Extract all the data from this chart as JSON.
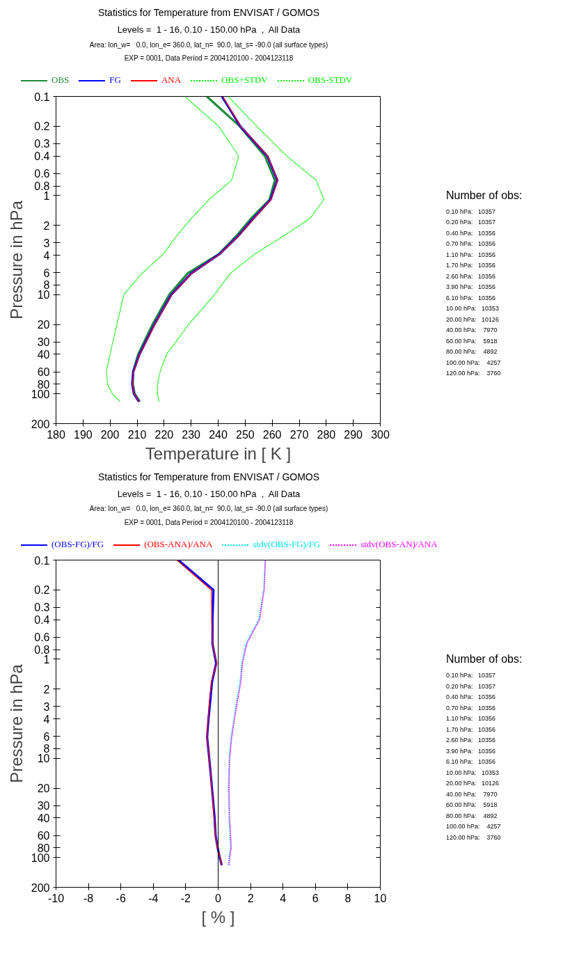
{
  "chart_data": [
    {
      "type": "line",
      "title": "Statistics for Temperature from ENVISAT / GOMOS",
      "subtitle": "Levels =  1 - 16, 0.10 - 150.00 hPa  ,  All Data\nArea: lon_w=   0.0, lon_e= 360.0, lat_n=  90.0, lat_s= -90.0 (all surface types)\nEXP = 0001, Data Period = 2004120100 - 2004123118",
      "xlabel": "Temperature in [ K ]",
      "ylabel": "Pressure in hPa",
      "log": "y",
      "grid": false,
      "legend": "top",
      "xlim": [
        180,
        300
      ],
      "xticks": [
        180,
        190,
        200,
        210,
        220,
        230,
        240,
        250,
        260,
        270,
        280,
        290,
        300
      ],
      "ylim": [
        200,
        0.1
      ],
      "yticks": [
        0.1,
        0.2,
        0.3,
        0.4,
        0.6,
        0.8,
        1,
        2,
        3,
        4,
        6,
        8,
        10,
        20,
        30,
        40,
        60,
        80,
        100,
        200
      ],
      "series": [
        {
          "name": "OBS",
          "color": "#1a8a3a",
          "line_style": "solid",
          "x": [
            235.8,
            248.0,
            257.3,
            261.0,
            259.0,
            252.2,
            246.5,
            240.2,
            228.7,
            221.9,
            215.7,
            210.4,
            208.5,
            208.4,
            209.1,
            211.0
          ],
          "values": [
            0.1,
            0.2,
            0.4,
            0.7,
            1.1,
            1.7,
            2.6,
            3.9,
            6.1,
            10,
            20,
            40,
            60,
            80,
            100,
            120
          ]
        },
        {
          "name": "FG",
          "color": "#0000ff",
          "line_style": "solid",
          "x": [
            241.4,
            248.2,
            258.2,
            261.9,
            259.4,
            253.1,
            247.2,
            240.5,
            230.1,
            222.7,
            216.4,
            210.9,
            208.6,
            208.2,
            208.8,
            210.7
          ],
          "values": [
            0.1,
            0.2,
            0.4,
            0.7,
            1.1,
            1.7,
            2.6,
            3.9,
            6.1,
            10,
            20,
            40,
            60,
            80,
            100,
            120
          ]
        },
        {
          "name": "ANA",
          "color": "#ff0000",
          "line_style": "solid",
          "x": [
            241.7,
            248.3,
            258.3,
            262.0,
            259.5,
            253.2,
            247.3,
            240.6,
            230.2,
            222.8,
            216.5,
            211.0,
            208.7,
            208.3,
            208.9,
            210.8
          ],
          "values": [
            0.1,
            0.2,
            0.4,
            0.7,
            1.1,
            1.7,
            2.6,
            3.9,
            6.1,
            10,
            20,
            40,
            60,
            80,
            100,
            120
          ]
        },
        {
          "name": "OBS+STDV",
          "color": "#00ee00",
          "line_style": "dotted",
          "x": [
            243.7,
            254.3,
            265.4,
            276.3,
            279.1,
            274.0,
            263.8,
            253.5,
            244.5,
            238.6,
            229.1,
            220.9,
            218.5,
            217.6,
            217.5,
            218.1
          ],
          "values": [
            0.1,
            0.2,
            0.4,
            0.7,
            1.1,
            1.7,
            2.6,
            3.9,
            6.1,
            10,
            20,
            40,
            60,
            80,
            100,
            120
          ]
        },
        {
          "name": "OBS-STDV",
          "color": "#00ee00",
          "line_style": "dotted",
          "x": [
            227.6,
            240.2,
            247.6,
            245.0,
            236.6,
            230.1,
            224.4,
            219.7,
            211.8,
            205.1,
            202.5,
            200.0,
            198.6,
            199.1,
            200.8,
            203.7
          ],
          "values": [
            0.1,
            0.2,
            0.4,
            0.7,
            1.1,
            1.7,
            2.6,
            3.9,
            6.1,
            10,
            20,
            40,
            60,
            80,
            100,
            120
          ]
        }
      ],
      "annotations": [
        "Number of obs:",
        "0.10 hPa:   10357",
        "0.20 hPa:   10357",
        "0.40 hPa:   10356",
        "0.70 hPa:   10356",
        "1.10 hPa:   10356",
        "1.70 hPa:   10356",
        "2.60 hPa:   10356",
        "3.90 hPa:   10356",
        "6.10 hPa:   10356",
        "10.00 hPa:   10353",
        "20.00 hPa:   10126",
        "40.00 hPa:    7970",
        "60.00 hPa:    5918",
        "80.00 hPa:    4892",
        "100.00 hPa:    4257",
        "120.00 hPa:    3760"
      ]
    },
    {
      "type": "line",
      "title": "Statistics for Temperature from ENVISAT / GOMOS",
      "subtitle": "Levels =  1 - 16, 0.10 - 150.00 hPa  ,  All Data\nArea: lon_w=   0.0, lon_e= 360.0, lat_n=  90.0, lat_s= -90.0 (all surface types)\nEXP = 0001, Data Period = 2004120100 - 2004123118",
      "xlabel": "[ % ]",
      "ylabel": "Pressure in hPa",
      "log": "y",
      "grid": false,
      "legend": "top",
      "xlim": [
        -10,
        10
      ],
      "xticks": [
        -10,
        -8,
        -6,
        -4,
        -2,
        0,
        2,
        4,
        6,
        8,
        10
      ],
      "ylim": [
        200,
        0.1
      ],
      "yticks": [
        0.1,
        0.2,
        0.3,
        0.4,
        0.6,
        0.8,
        1,
        2,
        3,
        4,
        6,
        8,
        10,
        20,
        30,
        40,
        60,
        80,
        100,
        200
      ],
      "ref_lines": [
        {
          "axis": "x",
          "value": 0,
          "label": null,
          "color": "#000000"
        }
      ],
      "series": [
        {
          "name": "(OBS-FG)/FG",
          "color": "#0000ff",
          "line_style": "solid",
          "x": [
            -2.45,
            -0.29,
            -0.35,
            -0.35,
            -0.12,
            -0.38,
            -0.48,
            -0.59,
            -0.68,
            -0.55,
            -0.38,
            -0.22,
            -0.16,
            -0.03,
            0.1,
            0.22
          ],
          "values": [
            0.1,
            0.2,
            0.4,
            0.7,
            1.1,
            1.7,
            2.6,
            3.9,
            6.1,
            10,
            20,
            40,
            60,
            80,
            100,
            120
          ]
        },
        {
          "name": "(OBS-ANA)/ANA",
          "color": "#ff0000",
          "line_style": "solid",
          "x": [
            -2.55,
            -0.42,
            -0.39,
            -0.35,
            -0.09,
            -0.42,
            -0.54,
            -0.61,
            -0.68,
            -0.55,
            -0.39,
            -0.25,
            -0.17,
            -0.04,
            0.12,
            0.22
          ],
          "values": [
            0.1,
            0.2,
            0.4,
            0.7,
            1.1,
            1.7,
            2.6,
            3.9,
            6.1,
            10,
            20,
            40,
            60,
            80,
            100,
            120
          ]
        },
        {
          "name": "stdv(OBS-FG)/FG",
          "color": "#00e5e5",
          "line_style": "dotted",
          "x": [
            2.89,
            2.81,
            2.5,
            1.71,
            1.45,
            1.35,
            1.15,
            0.98,
            0.8,
            0.67,
            0.63,
            0.67,
            0.72,
            0.76,
            0.67,
            0.63
          ],
          "values": [
            0.1,
            0.2,
            0.4,
            0.7,
            1.1,
            1.7,
            2.6,
            3.9,
            6.1,
            10,
            20,
            40,
            60,
            80,
            100,
            120
          ]
        },
        {
          "name": "stdv(OBS-AN)/ANA",
          "color": "#ff00ff",
          "line_style": "dotted",
          "x": [
            2.92,
            2.84,
            2.55,
            1.76,
            1.5,
            1.4,
            1.2,
            1.02,
            0.84,
            0.71,
            0.67,
            0.71,
            0.77,
            0.81,
            0.71,
            0.66
          ],
          "values": [
            0.1,
            0.2,
            0.4,
            0.7,
            1.1,
            1.7,
            2.6,
            3.9,
            6.1,
            10,
            20,
            40,
            60,
            80,
            100,
            120
          ]
        }
      ],
      "annotations": [
        "Number of obs:",
        "0.10 hPa:   10357",
        "0.20 hPa:   10357",
        "0.40 hPa:   10356",
        "0.70 hPa:   10356",
        "1.10 hPa:   10356",
        "1.70 hPa:   10356",
        "2.60 hPa:   10356",
        "3.90 hPa:   10356",
        "6.10 hPa:   10356",
        "10.00 hPa:   10353",
        "20.00 hPa:   10126",
        "40.00 hPa:    7970",
        "60.00 hPa:    5918",
        "80.00 hPa:    4892",
        "100.00 hPa:    4257",
        "120.00 hPa:    3760"
      ]
    }
  ]
}
